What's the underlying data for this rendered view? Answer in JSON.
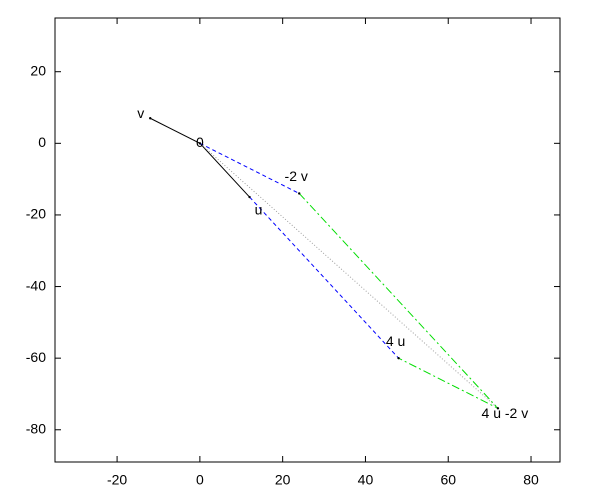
{
  "chart_data": {
    "type": "vector",
    "xlim": [
      -35,
      87
    ],
    "ylim": [
      -89,
      35
    ],
    "xticks": [
      -20,
      0,
      20,
      40,
      60,
      80
    ],
    "yticks": [
      -80,
      -60,
      -40,
      -20,
      0,
      20
    ],
    "series": [
      {
        "color": "#000000",
        "style": "solid",
        "x": [
          -12,
          0,
          12
        ],
        "values": [
          7,
          0,
          -15
        ]
      },
      {
        "color": "#0000ff",
        "style": "dashed",
        "x": [
          0,
          24
        ],
        "values": [
          0,
          -14
        ]
      },
      {
        "color": "#0000ff",
        "style": "dashed",
        "x": [
          12,
          48
        ],
        "values": [
          -15,
          -60
        ]
      },
      {
        "color": "#00dd00",
        "style": "dashdot",
        "x": [
          24,
          72,
          48
        ],
        "values": [
          -14,
          -74,
          -60
        ]
      },
      {
        "color": "#a0a0a0",
        "style": "dotted",
        "x": [
          0,
          72
        ],
        "values": [
          0,
          -74
        ]
      }
    ],
    "points": [
      {
        "label": "v",
        "x": -12,
        "y": 7
      },
      {
        "label": "0",
        "x": 0,
        "y": 0
      },
      {
        "label": "u",
        "x": 12,
        "y": -15
      },
      {
        "label": "-2 v",
        "x": 24,
        "y": -14
      },
      {
        "label": "4 u",
        "x": 48,
        "y": -60
      },
      {
        "label": "4 u -2 v",
        "x": 72,
        "y": -74
      }
    ]
  }
}
